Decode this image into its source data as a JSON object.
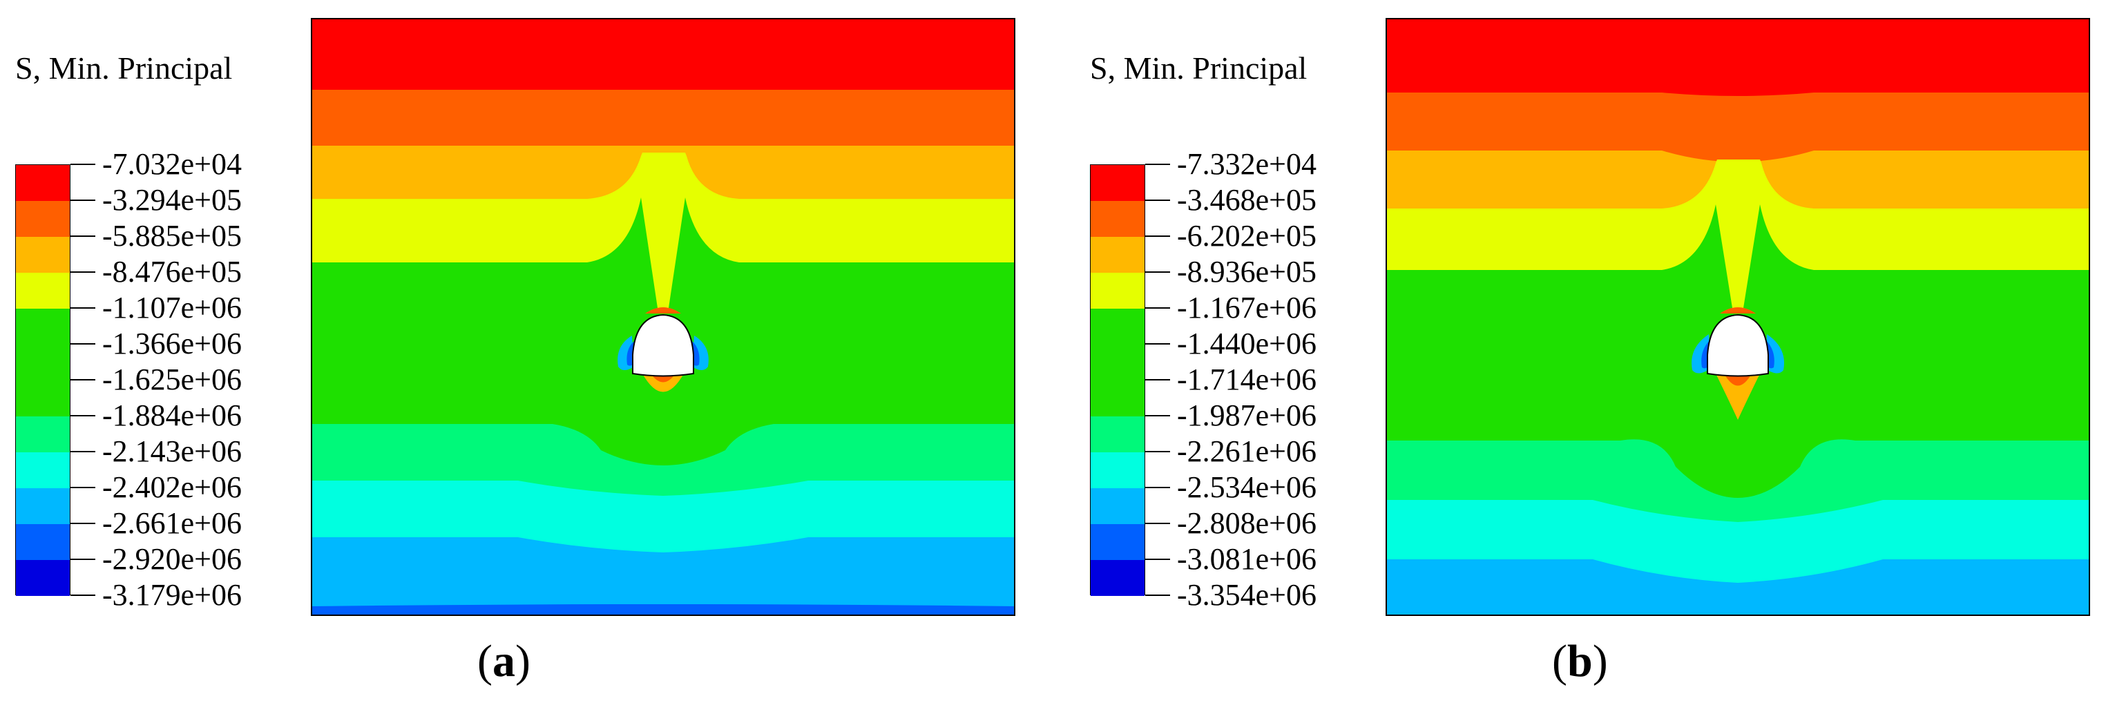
{
  "colors": {
    "red": "#ff0000",
    "orange_red": "#ff5f00",
    "orange": "#ffb800",
    "yellow": "#e5ff00",
    "green": "#1ee000",
    "spring_green": "#00f97a",
    "cyan": "#00ffe0",
    "light_blue": "#00b8ff",
    "blue": "#0060ff",
    "dark_blue": "#0000e0",
    "tunnel": "#ffffff",
    "outline": "#000000"
  },
  "panels": [
    {
      "legend": {
        "title": "S, Min. Principal",
        "labels": [
          "-7.032e+04",
          "-3.294e+05",
          "-5.885e+05",
          "-8.476e+05",
          "-1.107e+06",
          "-1.366e+06",
          "-1.625e+06",
          "-1.884e+06",
          "-2.143e+06",
          "-2.402e+06",
          "-2.661e+06",
          "-2.920e+06",
          "-3.179e+06"
        ],
        "swatches": [
          "#ff0000",
          "#ff5f00",
          "#ffb800",
          "#e5ff00",
          "#1ee000",
          "#1ee000",
          "#1ee000",
          "#00f97a",
          "#00ffe0",
          "#00b8ff",
          "#0060ff",
          "#0000e0"
        ]
      },
      "caption": {
        "open": "(",
        "letter": "a",
        "close": ")"
      }
    },
    {
      "legend": {
        "title": "S, Min. Principal",
        "labels": [
          "-7.332e+04",
          "-3.468e+05",
          "-6.202e+05",
          "-8.936e+05",
          "-1.167e+06",
          "-1.440e+06",
          "-1.714e+06",
          "-1.987e+06",
          "-2.261e+06",
          "-2.534e+06",
          "-2.808e+06",
          "-3.081e+06",
          "-3.354e+06"
        ],
        "swatches": [
          "#ff0000",
          "#ff5f00",
          "#ffb800",
          "#e5ff00",
          "#1ee000",
          "#1ee000",
          "#1ee000",
          "#00f97a",
          "#00ffe0",
          "#00b8ff",
          "#0060ff",
          "#0000e0"
        ]
      },
      "caption": {
        "open": "(",
        "letter": "b",
        "close": ")"
      }
    }
  ]
}
